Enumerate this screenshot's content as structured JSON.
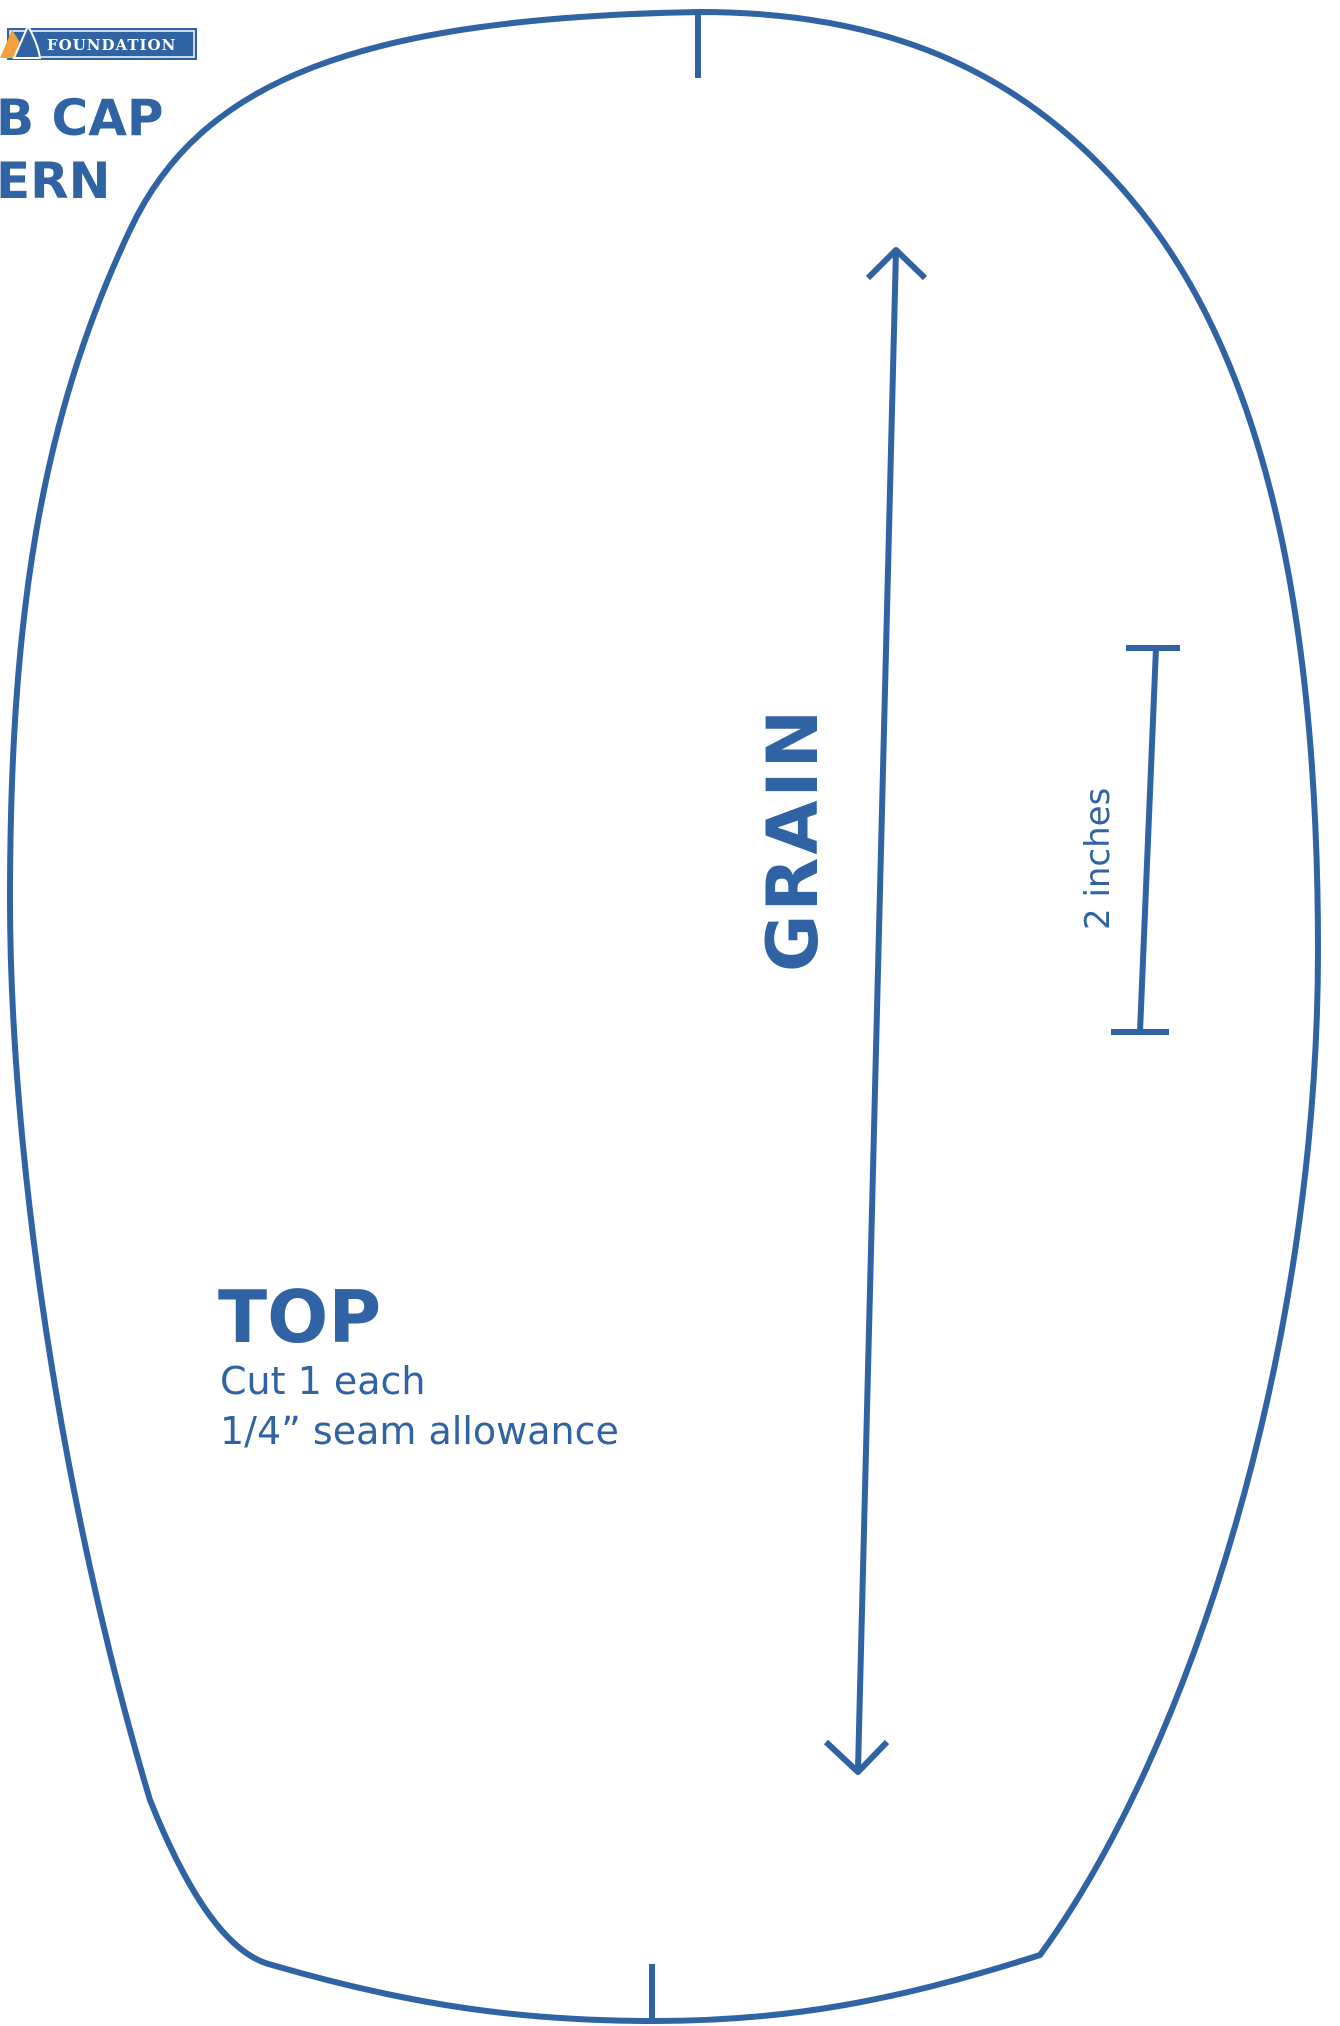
{
  "header": {
    "brand": "FOUNDATION",
    "title_line1": "B CAP",
    "title_line2": "ERN"
  },
  "pattern": {
    "grain_label": "GRAIN",
    "scale_label": "2 inches",
    "piece_name": "TOP",
    "instruction_cut": "Cut 1 each",
    "instruction_seam": "1/4” seam allowance"
  },
  "colors": {
    "ink": "#2f63a4",
    "logo_orange": "#f2a23a",
    "background": "#ffffff"
  }
}
